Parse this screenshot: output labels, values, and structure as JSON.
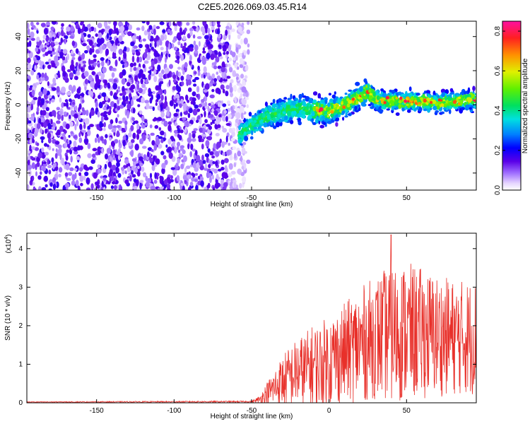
{
  "title": "C2E5.2026.069.03.45.R14",
  "chart_data": [
    {
      "type": "heatmap",
      "xlabel": "Height of straight line (km)",
      "ylabel": "Frequency (Hz)",
      "xlim": [
        -195,
        95
      ],
      "ylim": [
        -50,
        49
      ],
      "x_ticks": [
        "-150",
        "-100",
        "-50",
        "0",
        "50"
      ],
      "x_tick_values": [
        -150,
        -100,
        -50,
        0,
        50
      ],
      "y_ticks": [
        "40",
        "20",
        "0",
        "-20",
        "-40"
      ],
      "y_tick_values": [
        40,
        20,
        0,
        -20,
        -40
      ],
      "colorbar": {
        "label": "Normalized spectral amplitude",
        "range": [
          0,
          0.85
        ],
        "ticks": [
          "0.0",
          "0.2",
          "0.4",
          "0.6",
          "0.8"
        ],
        "tick_values": [
          0.0,
          0.2,
          0.4,
          0.6,
          0.8
        ]
      },
      "ridge": {
        "description_x": [
          -58,
          -50,
          -40,
          -30,
          -20,
          -10,
          0,
          10,
          20,
          25,
          30,
          40,
          50,
          60,
          70,
          80,
          90,
          95
        ],
        "center_freq": [
          -18,
          -12,
          -7,
          -4,
          -2,
          -3,
          -4,
          0,
          5,
          8,
          3,
          2,
          2,
          2,
          1,
          2,
          3,
          3
        ],
        "halfwidth": [
          6,
          7,
          8,
          8,
          8,
          8,
          8,
          7,
          7,
          7,
          6,
          6,
          6,
          6,
          6,
          6,
          6,
          6
        ]
      },
      "noise_region_x": [
        -195,
        -60
      ]
    },
    {
      "type": "line",
      "xlabel": "Height of straight line (km)",
      "ylabel": "SNR (10 * v/v)",
      "y_multiplier": "(x10",
      "y_multiplier_exp": "4",
      "xlim": [
        -195,
        95
      ],
      "ylim": [
        0,
        4.4
      ],
      "x_ticks": [
        "-150",
        "-100",
        "-50",
        "0",
        "50"
      ],
      "x_tick_values": [
        -150,
        -100,
        -50,
        0,
        50
      ],
      "y_ticks": [
        "0",
        "1",
        "2",
        "3",
        "4"
      ],
      "y_tick_values": [
        0,
        1,
        2,
        3,
        4
      ],
      "envelope_x": [
        -195,
        -50,
        -45,
        -40,
        -35,
        -30,
        -25,
        -20,
        -15,
        -10,
        -5,
        0,
        10,
        20,
        30,
        40,
        50,
        60,
        70,
        80,
        90,
        95
      ],
      "envelope_mean": [
        0.02,
        0.03,
        0.08,
        0.25,
        0.4,
        0.55,
        0.7,
        0.8,
        0.85,
        0.95,
        1.0,
        1.1,
        1.3,
        1.5,
        1.7,
        1.8,
        1.85,
        1.8,
        1.75,
        1.7,
        1.7,
        1.7
      ],
      "envelope_spread": [
        0.01,
        0.02,
        0.1,
        0.3,
        0.5,
        0.7,
        0.8,
        0.9,
        1.0,
        1.1,
        1.1,
        1.2,
        1.3,
        1.5,
        1.6,
        1.8,
        1.8,
        1.7,
        1.6,
        1.5,
        1.5,
        1.5
      ],
      "peak": {
        "x": 40,
        "y": 4.35
      },
      "color": "#e8302a"
    }
  ]
}
